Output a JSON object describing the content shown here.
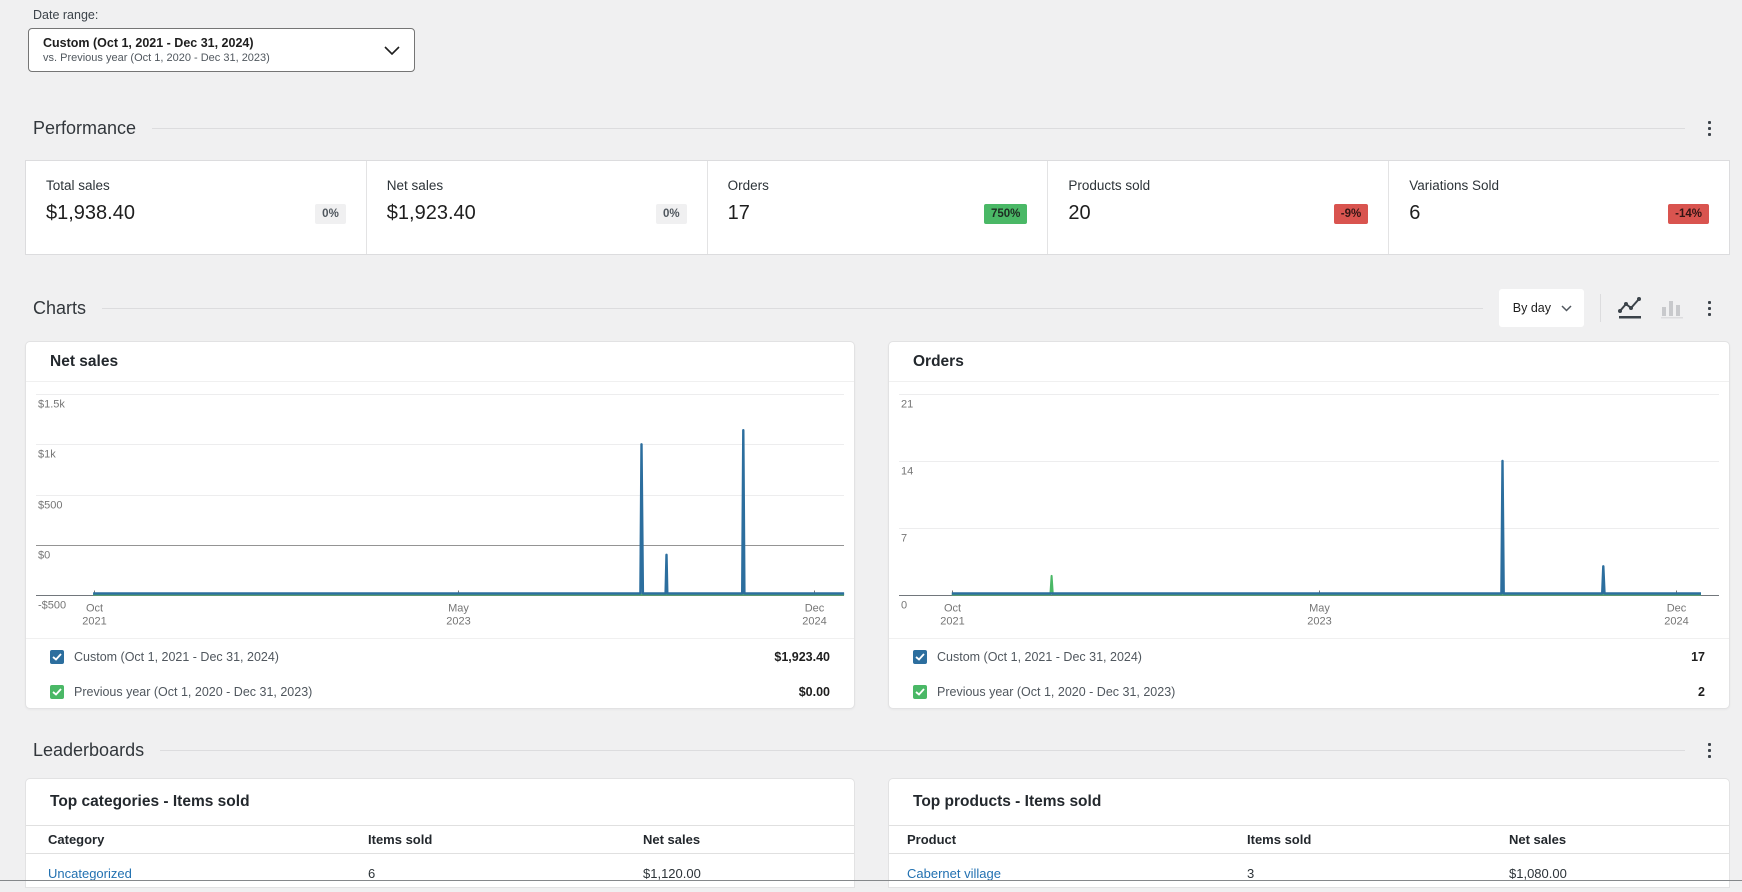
{
  "ui": {
    "date_range": {
      "label": "Date range:",
      "primary": "Custom (Oct 1, 2021 - Dec 31, 2024)",
      "secondary": "vs. Previous year (Oct 1, 2020 - Dec 31, 2023)"
    },
    "sections": {
      "performance": "Performance",
      "charts": "Charts",
      "leaderboards": "Leaderboards"
    },
    "interval_select": "By day"
  },
  "performance_stats": [
    {
      "label": "Total sales",
      "value": "$1,938.40",
      "delta": "0%",
      "trend": "neutral"
    },
    {
      "label": "Net sales",
      "value": "$1,923.40",
      "delta": "0%",
      "trend": "neutral"
    },
    {
      "label": "Orders",
      "value": "17",
      "delta": "750%",
      "trend": "positive"
    },
    {
      "label": "Products sold",
      "value": "20",
      "delta": "-9%",
      "trend": "negative"
    },
    {
      "label": "Variations Sold",
      "value": "6",
      "delta": "-14%",
      "trend": "negative"
    }
  ],
  "colors": {
    "primary_series": "#2c6e9e",
    "secondary_series": "#4ab866",
    "link": "#2271b1",
    "positive_badge": "#4ab866",
    "negative_badge": "#d9544f"
  },
  "chart_data": [
    {
      "id": "net-sales",
      "type": "line",
      "title": "Net sales",
      "interval": "day",
      "ymin": -500,
      "ymax": 1500,
      "gridlines": [
        {
          "label": "$1.5k",
          "value": 1500
        },
        {
          "label": "$1k",
          "value": 1000
        },
        {
          "label": "$500",
          "value": 500
        },
        {
          "label": "$0",
          "value": 0,
          "dark": true
        },
        {
          "label": "-$500",
          "value": -500,
          "axis": true
        }
      ],
      "x_ticks": [
        {
          "label": [
            "Oct",
            "2021"
          ],
          "frac": 0.082
        },
        {
          "label": [
            "May",
            "2023"
          ],
          "frac": 0.522
        },
        {
          "label": [
            "Dec",
            "2024"
          ],
          "frac": 0.952
        }
      ],
      "series": [
        {
          "name": "Custom (Oct 1, 2021 - Dec 31, 2024)",
          "color": "#2c6e9e",
          "width": 2.4,
          "lift": 2,
          "points": [
            [
              0.081,
              0
            ],
            [
              0.742,
              0
            ],
            [
              0.7434,
              1000
            ],
            [
              0.745,
              0
            ],
            [
              0.7725,
              0
            ],
            [
              0.7735,
              -100
            ],
            [
              0.7745,
              0
            ],
            [
              0.865,
              0
            ],
            [
              0.8663,
              1140
            ],
            [
              0.8676,
              0
            ],
            [
              0.988,
              0
            ]
          ]
        },
        {
          "name": "Previous year (Oct 1, 2020 - Dec 31, 2023)",
          "color": "#4ab866",
          "width": 2,
          "lift": 1,
          "points": [
            [
              0.081,
              0
            ],
            [
              0.988,
              0
            ]
          ]
        }
      ],
      "legend": [
        {
          "label": "Custom (Oct 1, 2021 - Dec 31, 2024)",
          "value": "$1,923.40",
          "color": "#2c6e9e"
        },
        {
          "label": "Previous year (Oct 1, 2020 - Dec 31, 2023)",
          "value": "$0.00",
          "color": "#4ab866"
        }
      ]
    },
    {
      "id": "orders",
      "type": "line",
      "title": "Orders",
      "interval": "day",
      "ymin": 0,
      "ymax": 21,
      "gridlines": [
        {
          "label": "21",
          "value": 21
        },
        {
          "label": "14",
          "value": 14
        },
        {
          "label": "7",
          "value": 7
        },
        {
          "label": "0",
          "value": 0,
          "axis": true
        }
      ],
      "x_ticks": [
        {
          "label": [
            "Oct",
            "2021"
          ],
          "frac": 0.075
        },
        {
          "label": [
            "May",
            "2023"
          ],
          "frac": 0.512
        },
        {
          "label": [
            "Dec",
            "2024"
          ],
          "frac": 0.937
        }
      ],
      "series": [
        {
          "name": "Custom (Oct 1, 2021 - Dec 31, 2024)",
          "color": "#2c6e9e",
          "width": 2.4,
          "lift": 2,
          "points": [
            [
              0.0748,
              0
            ],
            [
              0.729,
              0
            ],
            [
              0.7304,
              14
            ],
            [
              0.7318,
              0
            ],
            [
              0.849,
              0
            ],
            [
              0.8504,
              3
            ],
            [
              0.8518,
              0
            ],
            [
              0.9667,
              0
            ]
          ]
        },
        {
          "name": "Previous year (Oct 1, 2020 - Dec 31, 2023)",
          "color": "#4ab866",
          "width": 2,
          "lift": 1,
          "points": [
            [
              0.0748,
              0
            ],
            [
              0.1922,
              0
            ],
            [
              0.1936,
              2
            ],
            [
              0.195,
              0
            ],
            [
              0.9667,
              0
            ]
          ]
        }
      ],
      "legend": [
        {
          "label": "Custom (Oct 1, 2021 - Dec 31, 2024)",
          "value": "17",
          "color": "#2c6e9e"
        },
        {
          "label": "Previous year (Oct 1, 2020 - Dec 31, 2023)",
          "value": "2",
          "color": "#4ab866"
        }
      ]
    }
  ],
  "leaderboards": [
    {
      "title": "Top categories - Items sold",
      "columns": [
        "Category",
        "Items sold",
        "Net sales"
      ],
      "rows": [
        {
          "name": "Uncategorized",
          "items": "6",
          "net": "$1,120.00"
        }
      ]
    },
    {
      "title": "Top products - Items sold",
      "columns": [
        "Product",
        "Items sold",
        "Net sales"
      ],
      "rows": [
        {
          "name": "Cabernet village",
          "items": "3",
          "net": "$1,080.00"
        }
      ]
    }
  ]
}
